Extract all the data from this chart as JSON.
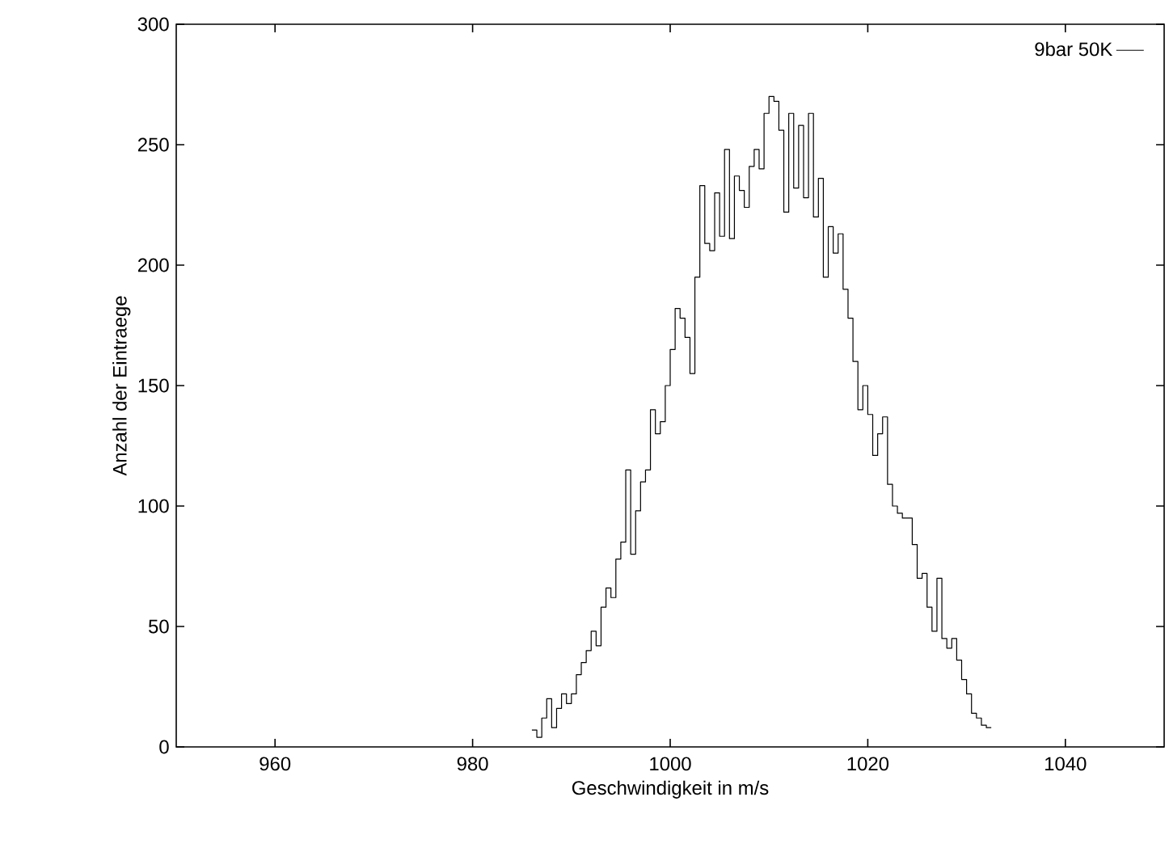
{
  "chart_data": {
    "type": "histogram",
    "xlabel": "Geschwindigkeit in m/s",
    "ylabel": "Anzahl der Eintraege",
    "bins": [
      986.0,
      986.5,
      987.0,
      987.5,
      988.0,
      988.5,
      989.0,
      989.5,
      990.0,
      990.5,
      991.0,
      991.5,
      992.0,
      992.5,
      993.0,
      993.5,
      994.0,
      994.5,
      995.0,
      995.5,
      996.0,
      996.5,
      997.0,
      997.5,
      998.0,
      998.5,
      999.0,
      999.5,
      1000.0,
      1000.5,
      1001.0,
      1001.5,
      1002.0,
      1002.5,
      1003.0,
      1003.5,
      1004.0,
      1004.5,
      1005.0,
      1005.5,
      1006.0,
      1006.5,
      1007.0,
      1007.5,
      1008.0,
      1008.5,
      1009.0,
      1009.5,
      1010.0,
      1010.5,
      1011.0,
      1011.5,
      1012.0,
      1012.5,
      1013.0,
      1013.5,
      1014.0,
      1014.5,
      1015.0,
      1015.5,
      1016.0,
      1016.5,
      1017.0,
      1017.5,
      1018.0,
      1018.5,
      1019.0,
      1019.5,
      1020.0,
      1020.5,
      1021.0,
      1021.5,
      1022.0,
      1022.5,
      1023.0,
      1023.5,
      1024.0,
      1024.5,
      1025.0,
      1025.5,
      1026.0,
      1026.5,
      1027.0,
      1027.5,
      1028.0,
      1028.5,
      1029.0,
      1029.5,
      1030.0,
      1030.5,
      1031.0,
      1031.5,
      1032.0,
      1032.5
    ],
    "series": [
      {
        "name": "9bar 50K",
        "color": "#000000",
        "values": [
          7,
          4,
          12,
          20,
          8,
          16,
          22,
          18,
          22,
          30,
          35,
          40,
          48,
          42,
          58,
          66,
          62,
          78,
          85,
          115,
          80,
          98,
          110,
          115,
          140,
          130,
          135,
          150,
          165,
          182,
          178,
          170,
          155,
          195,
          233,
          209,
          206,
          230,
          212,
          248,
          211,
          237,
          231,
          224,
          241,
          248,
          240,
          263,
          270,
          268,
          256,
          222,
          263,
          232,
          258,
          228,
          263,
          220,
          236,
          195,
          216,
          205,
          213,
          190,
          178,
          160,
          140,
          150,
          138,
          121,
          130,
          137,
          109,
          100,
          97,
          95,
          95,
          84,
          70,
          72,
          58,
          48,
          70,
          45,
          41,
          45,
          36,
          28,
          22,
          14,
          12,
          9,
          8
        ]
      }
    ],
    "xlim": [
      950,
      1050
    ],
    "ylim": [
      0,
      300
    ],
    "xticks": [
      960,
      980,
      1000,
      1020,
      1040
    ],
    "yticks": [
      0,
      50,
      100,
      150,
      200,
      250,
      300
    ],
    "legend": "top right"
  }
}
